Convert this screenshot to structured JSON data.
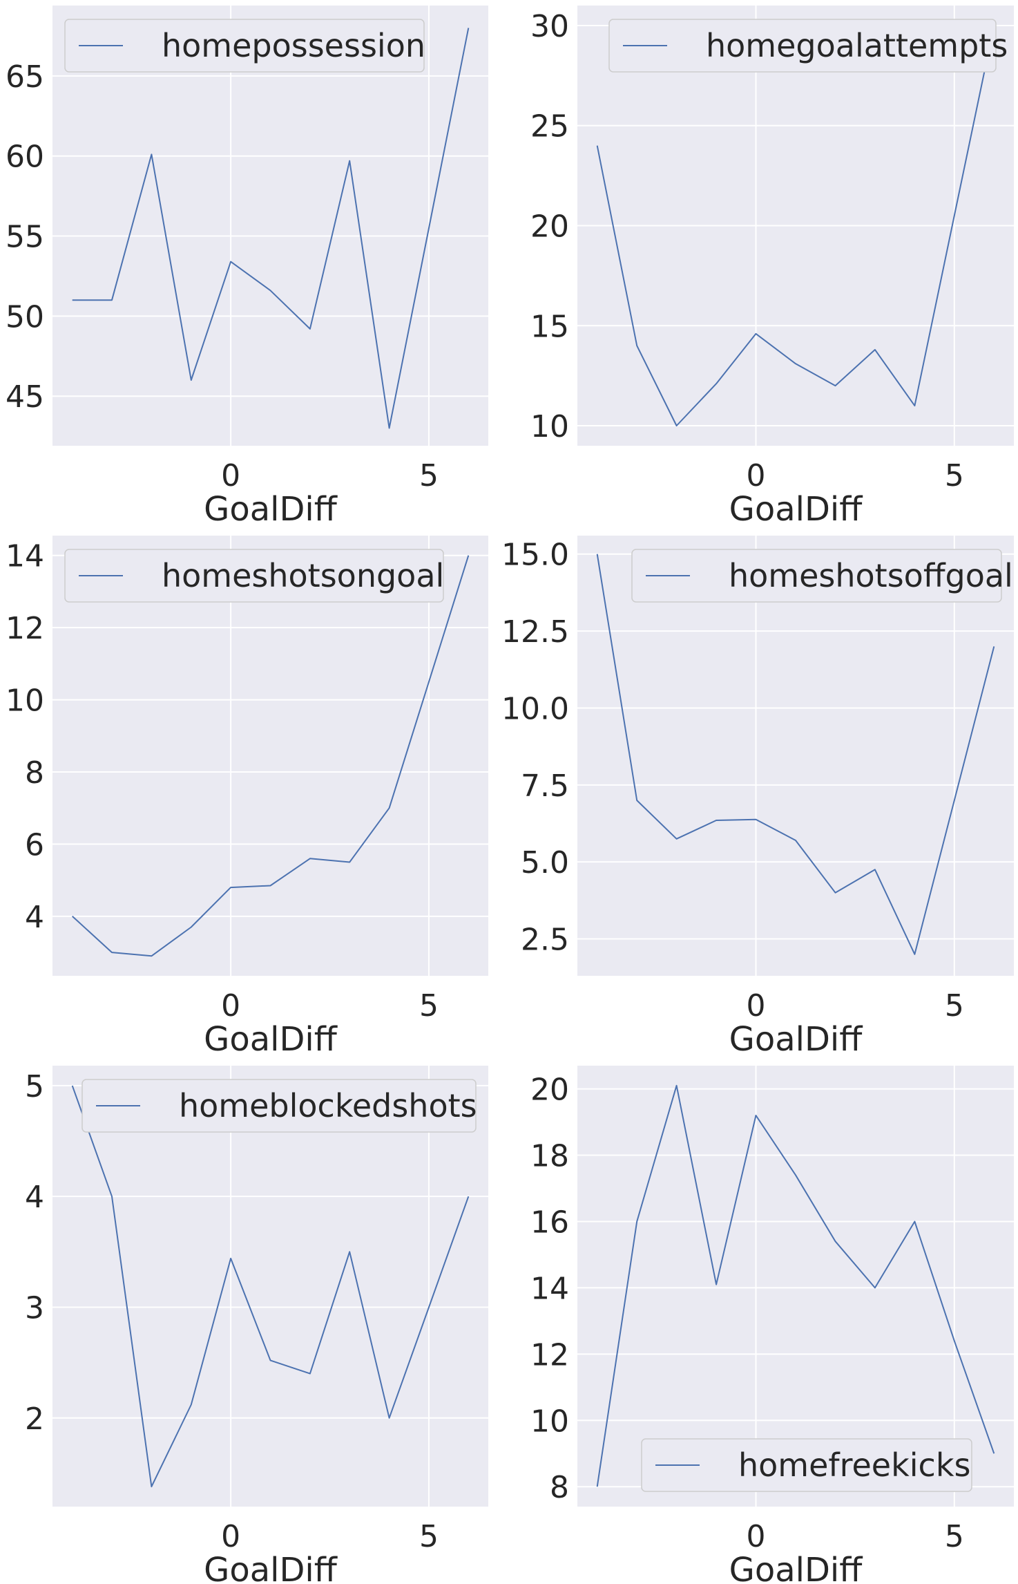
{
  "chart_data": [
    {
      "type": "line",
      "xlabel": "GoalDiff",
      "xticks": [
        0,
        5
      ],
      "yticks": [
        45,
        50,
        55,
        60,
        65
      ],
      "xlim": [
        -4.5,
        6.5
      ],
      "ylim": [
        41.9,
        69.4
      ],
      "legend_position": "upper-left",
      "grid": true,
      "series": [
        {
          "name": "homepossession",
          "x": [
            -4,
            -3,
            -2,
            -1,
            0,
            1,
            2,
            3,
            4,
            5,
            6
          ],
          "y": [
            51,
            51,
            60.1,
            46,
            53.4,
            51.6,
            49.2,
            59.7,
            43,
            55.5,
            68
          ]
        }
      ]
    },
    {
      "type": "line",
      "xlabel": "GoalDiff",
      "xticks": [
        0,
        5
      ],
      "yticks": [
        10,
        15,
        20,
        25,
        30
      ],
      "xlim": [
        -4.5,
        6.5
      ],
      "ylim": [
        9.0,
        31.0
      ],
      "legend_position": "upper-center",
      "grid": true,
      "series": [
        {
          "name": "homegoalattempts",
          "x": [
            -4,
            -3,
            -2,
            -1,
            0,
            1,
            2,
            3,
            4,
            5,
            6
          ],
          "y": [
            24,
            14,
            10,
            12.1,
            14.6,
            13.1,
            12,
            13.8,
            11,
            20.5,
            30
          ]
        }
      ]
    },
    {
      "type": "line",
      "xlabel": "GoalDiff",
      "xticks": [
        0,
        5
      ],
      "yticks": [
        4,
        6,
        8,
        10,
        12,
        14
      ],
      "xlim": [
        -4.5,
        6.5
      ],
      "ylim": [
        2.35,
        14.55
      ],
      "legend_position": "upper-left",
      "grid": true,
      "series": [
        {
          "name": "homeshotsongoal",
          "x": [
            -4,
            -3,
            -2,
            -1,
            0,
            1,
            2,
            3,
            4,
            5,
            6
          ],
          "y": [
            4,
            3,
            2.9,
            3.7,
            4.8,
            4.85,
            5.6,
            5.5,
            7,
            10.5,
            14
          ]
        }
      ]
    },
    {
      "type": "line",
      "xlabel": "GoalDiff",
      "xticks": [
        0,
        5
      ],
      "yticks": [
        2.5,
        5.0,
        7.5,
        10.0,
        12.5,
        15.0
      ],
      "ytick_labels": [
        "2.5",
        "5.0",
        "7.5",
        "10.0",
        "12.5",
        "15.0"
      ],
      "xlim": [
        -4.5,
        6.5
      ],
      "ylim": [
        1.3,
        15.6
      ],
      "legend_position": "upper-right",
      "grid": true,
      "series": [
        {
          "name": "homeshotsoffgoal",
          "x": [
            -4,
            -3,
            -2,
            -1,
            0,
            1,
            2,
            3,
            4,
            5,
            6
          ],
          "y": [
            15,
            7,
            5.75,
            6.35,
            6.38,
            5.7,
            4,
            4.75,
            2,
            7,
            12
          ]
        }
      ]
    },
    {
      "type": "line",
      "xlabel": "GoalDiff",
      "xticks": [
        0,
        5
      ],
      "yticks": [
        2,
        3,
        4,
        5
      ],
      "xlim": [
        -4.5,
        6.5
      ],
      "ylim": [
        1.2,
        5.18
      ],
      "legend_position": "upper-right",
      "grid": true,
      "series": [
        {
          "name": "homeblockedshots",
          "x": [
            -4,
            -3,
            -2,
            -1,
            0,
            1,
            2,
            3,
            4,
            5,
            6
          ],
          "y": [
            5,
            4,
            1.38,
            2.12,
            3.44,
            2.52,
            2.4,
            3.5,
            2,
            3,
            4
          ]
        }
      ]
    },
    {
      "type": "line",
      "xlabel": "GoalDiff",
      "xticks": [
        0,
        5
      ],
      "yticks": [
        8,
        10,
        12,
        14,
        16,
        18,
        20
      ],
      "xlim": [
        -4.5,
        6.5
      ],
      "ylim": [
        7.4,
        20.7
      ],
      "legend_position": "lower-center",
      "grid": true,
      "series": [
        {
          "name": "homefreekicks",
          "x": [
            -4,
            -3,
            -2,
            -1,
            0,
            1,
            2,
            3,
            4,
            5,
            6
          ],
          "y": [
            8,
            16,
            20.1,
            14.1,
            19.2,
            17.4,
            15.4,
            14,
            16,
            12.4,
            9
          ]
        }
      ]
    }
  ],
  "colors": {
    "panel_background": "#eaeaf2",
    "grid": "#ffffff",
    "line": "#4c72b0",
    "text": "#262626",
    "legend_border": "#cccccc"
  }
}
